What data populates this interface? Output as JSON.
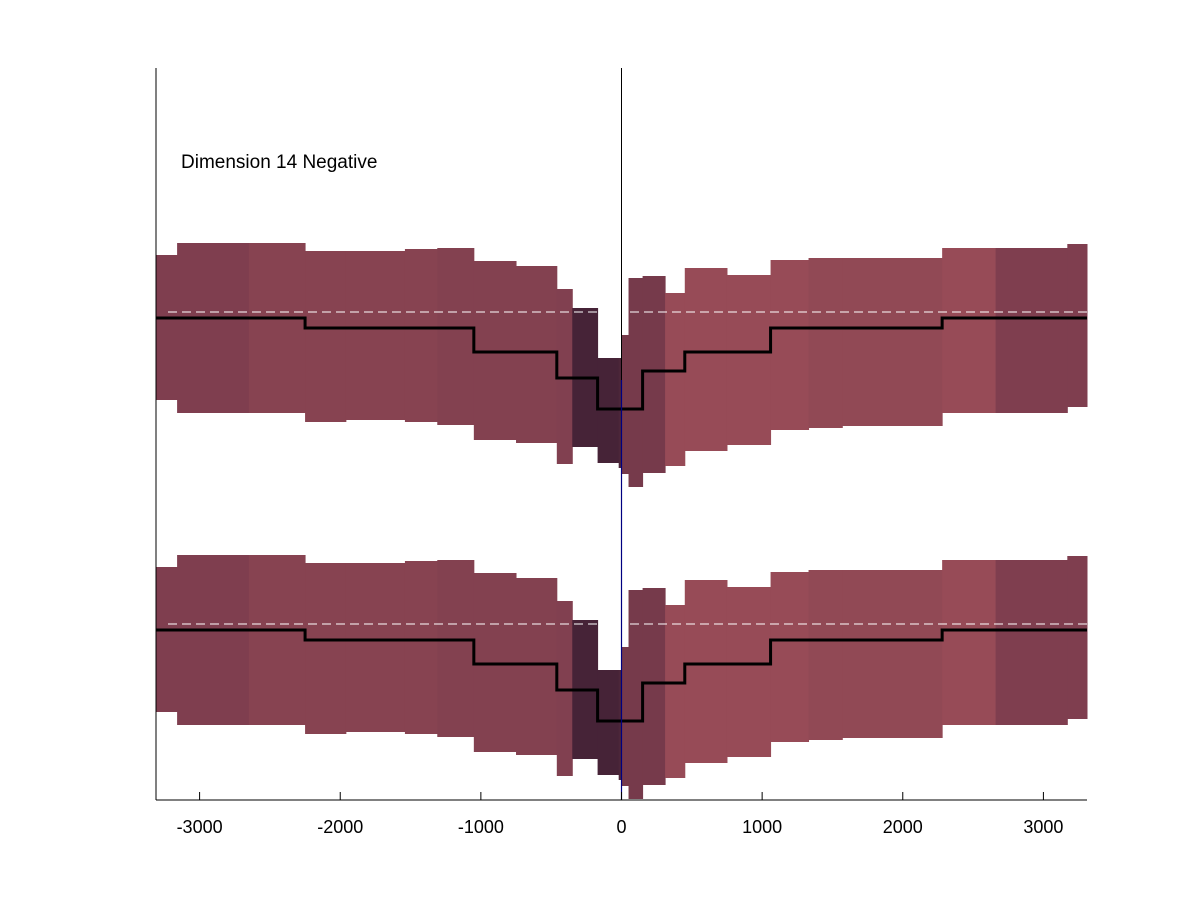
{
  "chart_data": {
    "type": "area",
    "annotation": "Dimension 14 Negative",
    "xlim": [
      -3310,
      3310
    ],
    "xticks": [
      -3000,
      -2000,
      -1000,
      0,
      1000,
      2000,
      3000
    ],
    "xtick_labels": [
      "-3000",
      "-2000",
      "-1000",
      "0",
      "1000",
      "2000",
      "3000"
    ],
    "grid": false,
    "reference_line_x": 0,
    "colors": {
      "band_dark": "#3d1f33",
      "band_mid": "#6e3a4b",
      "band_base": "#7f3e4f",
      "band_light": "#8b4652",
      "band_lighter": "#974b57",
      "median": "#000000",
      "baseline_dashed": "#ffffff",
      "zero_line": "#000080"
    },
    "bins": [
      {
        "x": [
          -3310,
          -3160
        ],
        "shade": 0.35,
        "band": [
          2.45,
          1.0
        ],
        "median": 1.82
      },
      {
        "x": [
          -3160,
          -2650
        ],
        "shade": 0.35,
        "band": [
          2.57,
          0.87
        ],
        "median": 1.82
      },
      {
        "x": [
          -2650,
          -2250
        ],
        "shade": 0.45,
        "band": [
          2.57,
          0.87
        ],
        "median": 1.82
      },
      {
        "x": [
          -2250,
          -1960
        ],
        "shade": 0.45,
        "band": [
          2.49,
          0.78
        ],
        "median": 1.72
      },
      {
        "x": [
          -1960,
          -1540
        ],
        "shade": 0.45,
        "band": [
          2.49,
          0.8
        ],
        "median": 1.72
      },
      {
        "x": [
          -1540,
          -1310
        ],
        "shade": 0.45,
        "band": [
          2.51,
          0.78
        ],
        "median": 1.72
      },
      {
        "x": [
          -1310,
          -1050
        ],
        "shade": 0.4,
        "band": [
          2.52,
          0.75
        ],
        "median": 1.72
      },
      {
        "x": [
          -1050,
          -750
        ],
        "shade": 0.4,
        "band": [
          2.39,
          0.6
        ],
        "median": 1.48
      },
      {
        "x": [
          -750,
          -460
        ],
        "shade": 0.4,
        "band": [
          2.34,
          0.57
        ],
        "median": 1.48
      },
      {
        "x": [
          -460,
          -350
        ],
        "shade": 0.38,
        "band": [
          2.11,
          0.36
        ],
        "median": 1.22
      },
      {
        "x": [
          -350,
          -170
        ],
        "shade": 0.05,
        "band": [
          1.92,
          0.53
        ],
        "median": 1.22
      },
      {
        "x": [
          -170,
          -20
        ],
        "shade": 0.05,
        "band": [
          1.42,
          0.37
        ],
        "median": 0.91
      },
      {
        "x": [
          -20,
          0
        ],
        "shade": 0.08,
        "band": [
          1.42,
          0.32
        ],
        "median": 0.91
      },
      {
        "x": [
          0,
          50
        ],
        "shade": 0.3,
        "band": [
          1.65,
          0.26
        ],
        "median": 0.91
      },
      {
        "x": [
          50,
          150
        ],
        "shade": 0.3,
        "band": [
          2.22,
          0.13
        ],
        "median": 0.91
      },
      {
        "x": [
          150,
          310
        ],
        "shade": 0.3,
        "band": [
          2.24,
          0.27
        ],
        "median": 1.29
      },
      {
        "x": [
          310,
          450
        ],
        "shade": 0.7,
        "band": [
          2.07,
          0.34
        ],
        "median": 1.29
      },
      {
        "x": [
          450,
          750
        ],
        "shade": 0.7,
        "band": [
          2.32,
          0.49
        ],
        "median": 1.48
      },
      {
        "x": [
          750,
          1060
        ],
        "shade": 0.7,
        "band": [
          2.25,
          0.55
        ],
        "median": 1.48
      },
      {
        "x": [
          1060,
          1330
        ],
        "shade": 0.7,
        "band": [
          2.4,
          0.7
        ],
        "median": 1.72
      },
      {
        "x": [
          1330,
          1570
        ],
        "shade": 0.6,
        "band": [
          2.42,
          0.72
        ],
        "median": 1.72
      },
      {
        "x": [
          1570,
          2280
        ],
        "shade": 0.6,
        "band": [
          2.42,
          0.74
        ],
        "median": 1.72
      },
      {
        "x": [
          2280,
          2660
        ],
        "shade": 0.7,
        "band": [
          2.52,
          0.87
        ],
        "median": 1.82
      },
      {
        "x": [
          2660,
          3170
        ],
        "shade": 0.35,
        "band": [
          2.52,
          0.87
        ],
        "median": 1.82
      },
      {
        "x": [
          3170,
          3310
        ],
        "shade": 0.35,
        "band": [
          2.56,
          0.93
        ],
        "median": 1.82
      }
    ],
    "baseline_y": 1.88,
    "panels": 2
  }
}
